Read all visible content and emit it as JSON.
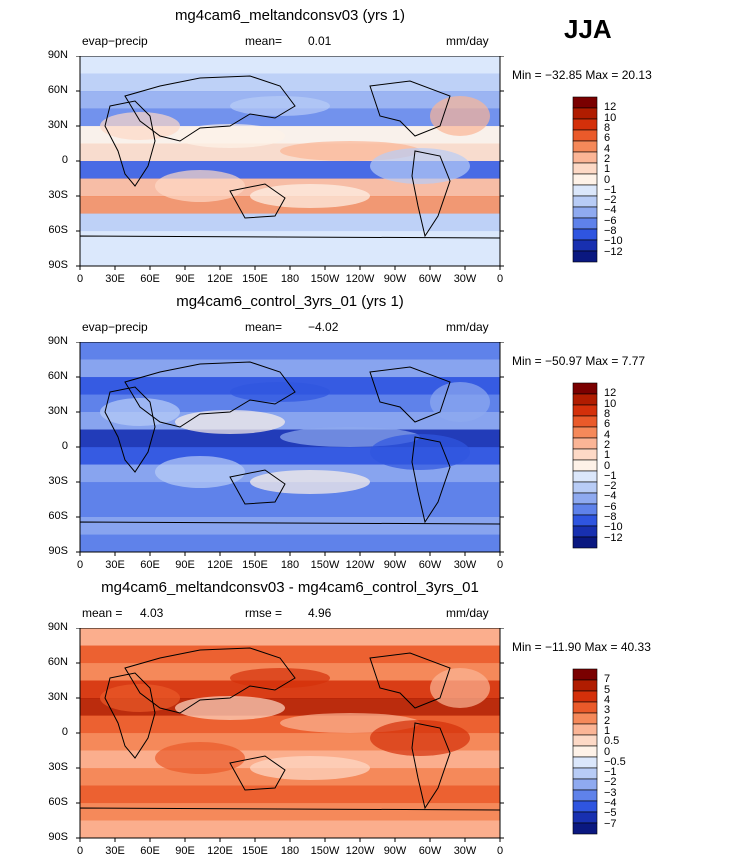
{
  "season": "JJA",
  "panels": [
    {
      "title": "mg4cam6_meltandconsv03 (yrs 1)",
      "left_label": "evap−precip",
      "stat_label": "mean=",
      "stat_value": "0.01",
      "stat2_label": "",
      "stat2_value": "",
      "units": "mm/day",
      "minmax": "Min = −32.85  Max =  20.13",
      "colorbar_labels": [
        "12",
        "10",
        "8",
        "6",
        "4",
        "2",
        "1",
        "0",
        "−1",
        "−2",
        "−4",
        "−6",
        "−8",
        "−10",
        "−12"
      ]
    },
    {
      "title": "mg4cam6_control_3yrs_01 (yrs 1)",
      "left_label": "evap−precip",
      "stat_label": "mean=",
      "stat_value": "−4.02",
      "stat2_label": "",
      "stat2_value": "",
      "units": "mm/day",
      "minmax": "Min = −50.97  Max =   7.77",
      "colorbar_labels": [
        "12",
        "10",
        "8",
        "6",
        "4",
        "2",
        "1",
        "0",
        "−1",
        "−2",
        "−4",
        "−6",
        "−8",
        "−10",
        "−12"
      ]
    },
    {
      "title": "mg4cam6_meltandconsv03 - mg4cam6_control_3yrs_01",
      "left_label": "",
      "stat_label": "mean =",
      "stat_value": "4.03",
      "stat2_label": "rmse =",
      "stat2_value": "4.96",
      "units": "mm/day",
      "minmax": "Min = −11.90  Max =  40.33",
      "colorbar_labels": [
        "7",
        "5",
        "4",
        "3",
        "2",
        "1",
        "0.5",
        "0",
        "−0.5",
        "−1",
        "−2",
        "−3",
        "−4",
        "−5",
        "−7"
      ]
    }
  ],
  "lat_ticks": [
    "90N",
    "60N",
    "30N",
    "0",
    "30S",
    "60S",
    "90S"
  ],
  "lon_ticks": [
    "0",
    "30E",
    "60E",
    "90E",
    "120E",
    "150E",
    "180",
    "150W",
    "120W",
    "90W",
    "60W",
    "30W",
    "0"
  ],
  "palette": [
    "#7a0000",
    "#b01c00",
    "#d4300a",
    "#ea5a2a",
    "#f5895a",
    "#fbb596",
    "#fdd9c6",
    "#fef2e8",
    "#dbe7fb",
    "#b8ccf6",
    "#8faaf0",
    "#5f82ea",
    "#2f55e0",
    "#1830b0",
    "#0a1880"
  ]
}
